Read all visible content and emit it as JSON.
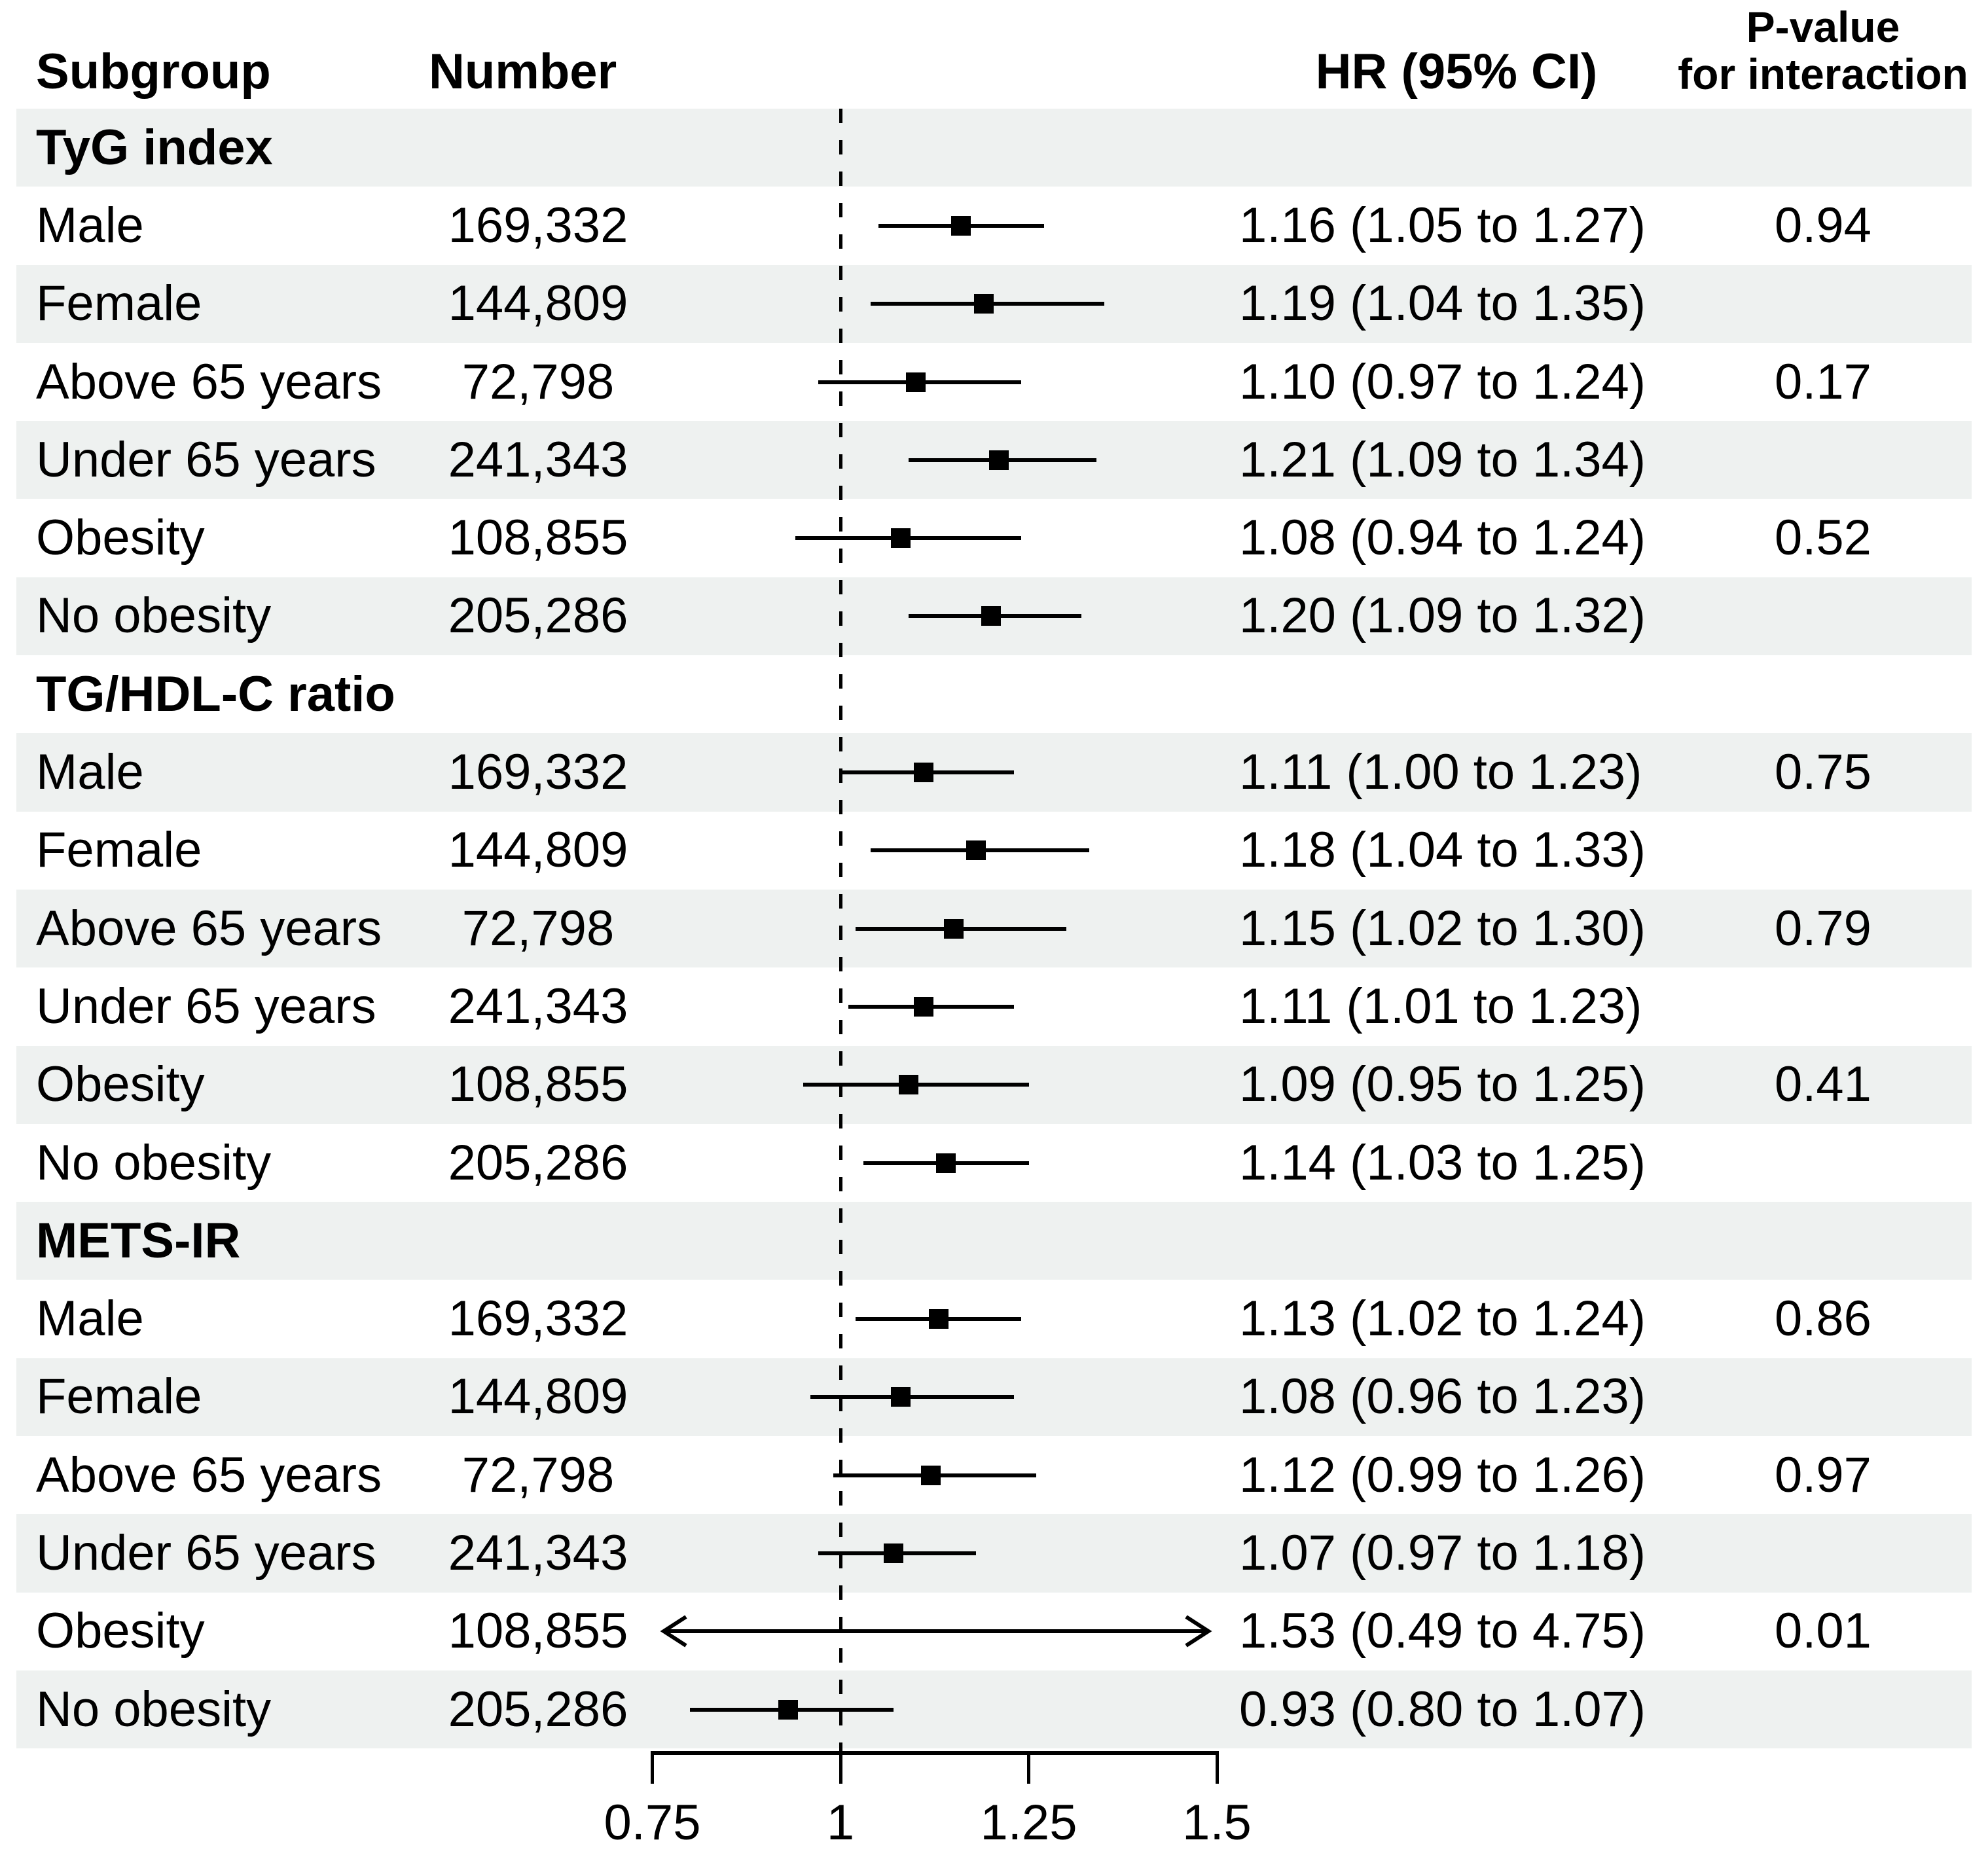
{
  "colors": {
    "stripe": "#eef1f0",
    "ink": "#000000"
  },
  "chart_data": {
    "type": "forest",
    "columns": {
      "subgroup": "Subgroup",
      "number": "Number",
      "hr_ci": "HR (95% CI)",
      "p_interaction_line1": "P-value",
      "p_interaction_line2": "for interaction"
    },
    "x_axis": {
      "tick_labels": [
        "0.75",
        "1",
        "1.25",
        "1.5"
      ],
      "tick_values": [
        0.75,
        1,
        1.25,
        1.5
      ],
      "range": [
        0.75,
        1.5
      ],
      "reference_value": 1,
      "reference_style": "dashed"
    },
    "sections": [
      {
        "label": "TyG index",
        "rows": [
          {
            "subgroup": "Male",
            "number": "169,332",
            "hr": 1.16,
            "ci_low": 1.05,
            "ci_high": 1.27,
            "hr_ci_text": "1.16 (1.05 to 1.27)",
            "p_interaction": "0.94"
          },
          {
            "subgroup": "Female",
            "number": "144,809",
            "hr": 1.19,
            "ci_low": 1.04,
            "ci_high": 1.35,
            "hr_ci_text": "1.19 (1.04 to 1.35)",
            "p_interaction": ""
          },
          {
            "subgroup": "Above 65 years",
            "number": "72,798",
            "hr": 1.1,
            "ci_low": 0.97,
            "ci_high": 1.24,
            "hr_ci_text": "1.10 (0.97 to 1.24)",
            "p_interaction": "0.17"
          },
          {
            "subgroup": "Under 65 years",
            "number": "241,343",
            "hr": 1.21,
            "ci_low": 1.09,
            "ci_high": 1.34,
            "hr_ci_text": "1.21 (1.09 to 1.34)",
            "p_interaction": ""
          },
          {
            "subgroup": "Obesity",
            "number": "108,855",
            "hr": 1.08,
            "ci_low": 0.94,
            "ci_high": 1.24,
            "hr_ci_text": "1.08 (0.94 to 1.24)",
            "p_interaction": "0.52"
          },
          {
            "subgroup": "No obesity",
            "number": "205,286",
            "hr": 1.2,
            "ci_low": 1.09,
            "ci_high": 1.32,
            "hr_ci_text": "1.20 (1.09 to 1.32)",
            "p_interaction": ""
          }
        ]
      },
      {
        "label": "TG/HDL-C ratio",
        "rows": [
          {
            "subgroup": "Male",
            "number": "169,332",
            "hr": 1.11,
            "ci_low": 1.0,
            "ci_high": 1.23,
            "hr_ci_text": "1.11 (1.00 to 1.23)",
            "p_interaction": "0.75"
          },
          {
            "subgroup": "Female",
            "number": "144,809",
            "hr": 1.18,
            "ci_low": 1.04,
            "ci_high": 1.33,
            "hr_ci_text": "1.18 (1.04 to 1.33)",
            "p_interaction": ""
          },
          {
            "subgroup": "Above 65 years",
            "number": "72,798",
            "hr": 1.15,
            "ci_low": 1.02,
            "ci_high": 1.3,
            "hr_ci_text": "1.15 (1.02 to 1.30)",
            "p_interaction": "0.79"
          },
          {
            "subgroup": "Under 65 years",
            "number": "241,343",
            "hr": 1.11,
            "ci_low": 1.01,
            "ci_high": 1.23,
            "hr_ci_text": "1.11 (1.01 to 1.23)",
            "p_interaction": ""
          },
          {
            "subgroup": "Obesity",
            "number": "108,855",
            "hr": 1.09,
            "ci_low": 0.95,
            "ci_high": 1.25,
            "hr_ci_text": "1.09 (0.95 to 1.25)",
            "p_interaction": "0.41"
          },
          {
            "subgroup": "No obesity",
            "number": "205,286",
            "hr": 1.14,
            "ci_low": 1.03,
            "ci_high": 1.25,
            "hr_ci_text": "1.14 (1.03 to 1.25)",
            "p_interaction": ""
          }
        ]
      },
      {
        "label": "METS-IR",
        "rows": [
          {
            "subgroup": "Male",
            "number": "169,332",
            "hr": 1.13,
            "ci_low": 1.02,
            "ci_high": 1.24,
            "hr_ci_text": "1.13 (1.02 to 1.24)",
            "p_interaction": "0.86"
          },
          {
            "subgroup": "Female",
            "number": "144,809",
            "hr": 1.08,
            "ci_low": 0.96,
            "ci_high": 1.23,
            "hr_ci_text": "1.08 (0.96 to 1.23)",
            "p_interaction": ""
          },
          {
            "subgroup": "Above 65 years",
            "number": "72,798",
            "hr": 1.12,
            "ci_low": 0.99,
            "ci_high": 1.26,
            "hr_ci_text": "1.12 (0.99 to 1.26)",
            "p_interaction": "0.97"
          },
          {
            "subgroup": "Under 65 years",
            "number": "241,343",
            "hr": 1.07,
            "ci_low": 0.97,
            "ci_high": 1.18,
            "hr_ci_text": "1.07 (0.97 to 1.18)",
            "p_interaction": ""
          },
          {
            "subgroup": "Obesity",
            "number": "108,855",
            "hr": 1.53,
            "ci_low": 0.49,
            "ci_high": 4.75,
            "hr_ci_text": "1.53 (0.49 to 4.75)",
            "p_interaction": "0.01",
            "ci_clipped_low": true,
            "ci_clipped_high": true
          },
          {
            "subgroup": "No obesity",
            "number": "205,286",
            "hr": 0.93,
            "ci_low": 0.8,
            "ci_high": 1.07,
            "hr_ci_text": "0.93 (0.80 to 1.07)",
            "p_interaction": ""
          }
        ]
      }
    ]
  }
}
